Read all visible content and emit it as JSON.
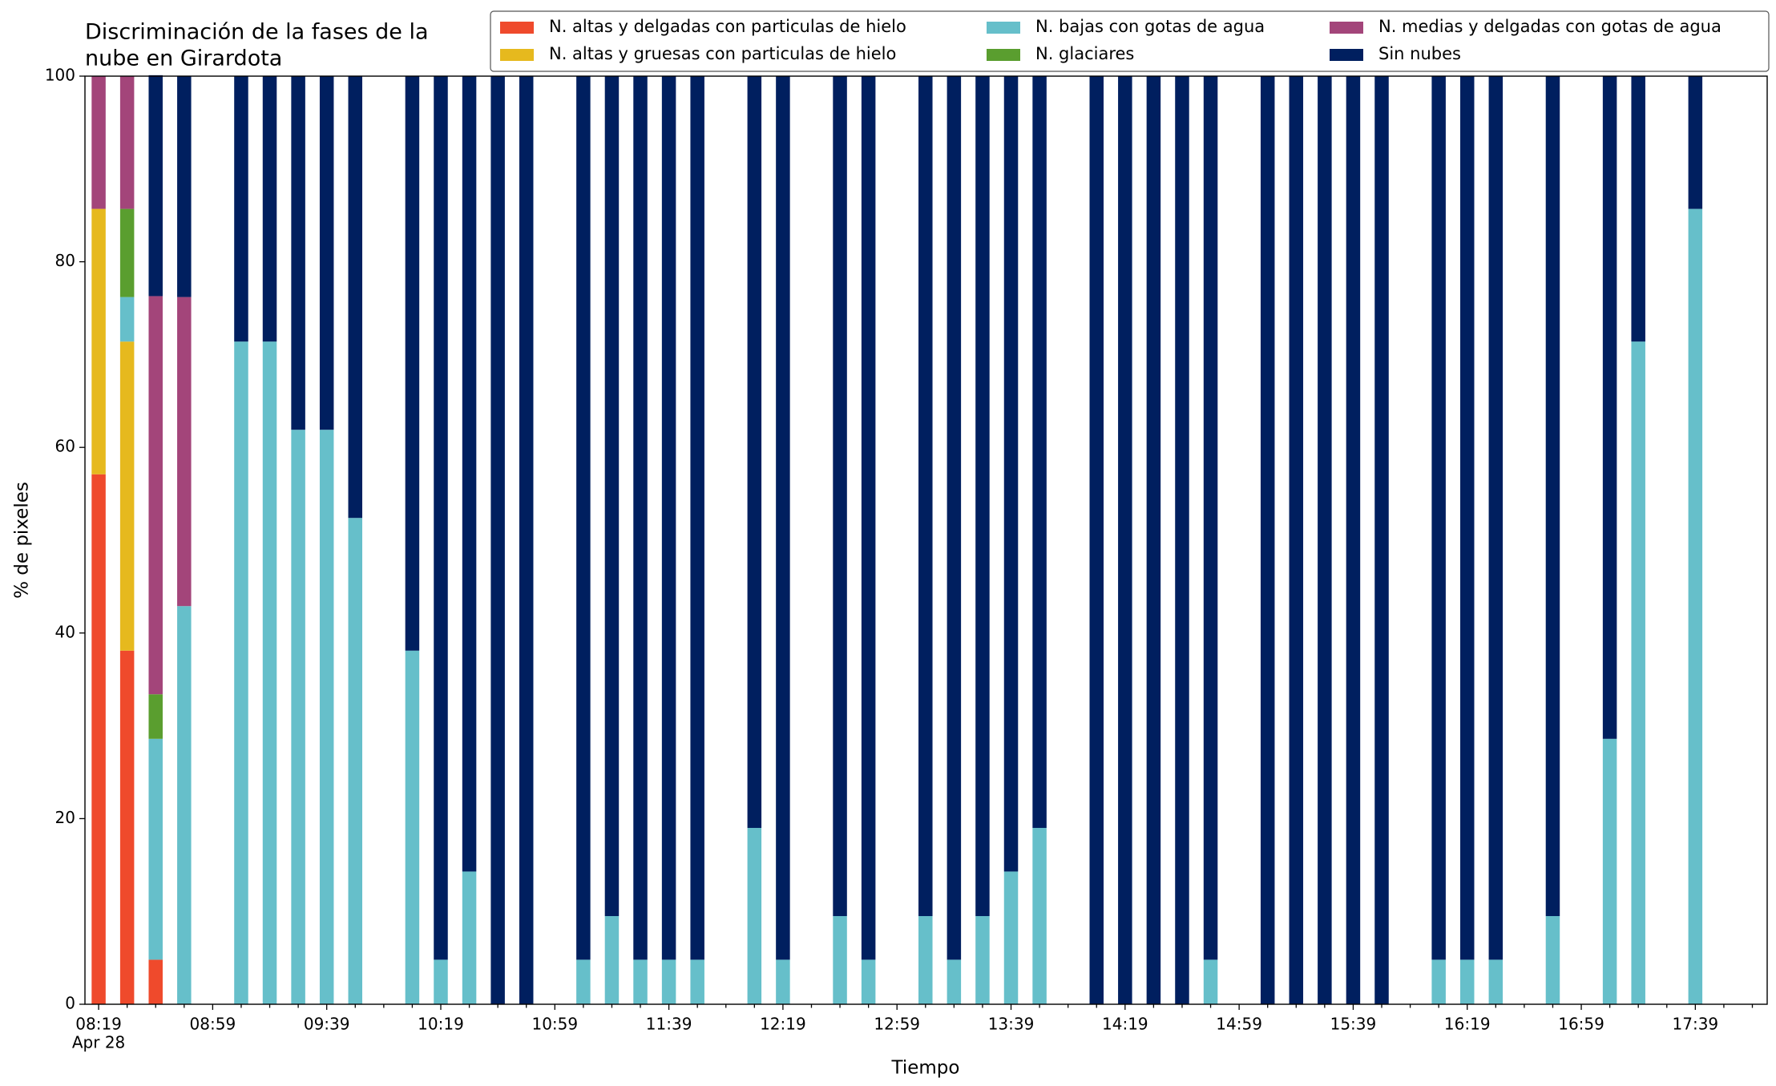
{
  "chart_data": {
    "type": "bar",
    "stacked": true,
    "title": [
      "Discriminación de la fases de la",
      "nube en Girardota"
    ],
    "xlabel": "Tiempo",
    "ylabel": "% de pixeles",
    "x_sublabel": "Apr 28",
    "categories": [
      "08:19",
      null,
      null,
      null,
      "08:59",
      null,
      null,
      null,
      "09:39",
      null,
      null,
      null,
      "10:19",
      null,
      null,
      null,
      "10:59",
      null,
      null,
      null,
      "11:39",
      null,
      null,
      null,
      "12:19",
      null,
      null,
      null,
      "12:59",
      null,
      null,
      null,
      "13:39",
      null,
      null,
      null,
      "14:19",
      null,
      null,
      null,
      "14:59",
      null,
      null,
      null,
      "15:39",
      null,
      null,
      null,
      "16:19",
      null,
      null,
      null,
      "16:59",
      null,
      null,
      null,
      "17:39",
      null,
      null,
      null
    ],
    "ylim": [
      0,
      100
    ],
    "yticks": [
      0,
      20,
      40,
      60,
      80,
      100
    ],
    "legend": "top right",
    "series": [
      {
        "name": "N. altas y delgadas con particulas de hielo",
        "color": "#ef4a2c",
        "values": [
          57.1,
          38.1,
          4.8,
          0,
          null,
          0,
          0,
          0,
          0,
          0,
          null,
          0,
          0,
          0,
          0,
          0,
          null,
          0,
          0,
          0,
          0,
          0,
          null,
          0,
          0,
          null,
          0,
          0,
          null,
          0,
          0,
          0,
          0,
          0,
          null,
          0,
          0,
          0,
          0,
          0,
          null,
          0,
          0,
          0,
          0,
          0,
          null,
          0,
          0,
          0,
          null,
          0,
          null,
          0,
          0,
          null,
          0,
          null,
          null,
          null
        ]
      },
      {
        "name": "N. altas y gruesas con particulas de hielo",
        "color": "#e6b91e",
        "values": [
          28.6,
          33.3,
          0,
          0,
          null,
          0,
          0,
          0,
          0,
          0,
          null,
          0,
          0,
          0,
          0,
          0,
          null,
          0,
          0,
          0,
          0,
          0,
          null,
          0,
          0,
          null,
          0,
          0,
          null,
          0,
          0,
          0,
          0,
          0,
          null,
          0,
          0,
          0,
          0,
          0,
          null,
          0,
          0,
          0,
          0,
          0,
          null,
          0,
          0,
          0,
          null,
          0,
          null,
          0,
          0,
          null,
          0,
          null,
          null,
          null
        ]
      },
      {
        "name": "N. bajas con gotas de agua",
        "color": "#66bfca",
        "values": [
          0,
          4.8,
          23.8,
          42.9,
          null,
          71.4,
          71.4,
          61.9,
          61.9,
          52.4,
          null,
          38.1,
          4.8,
          14.3,
          0,
          0,
          null,
          4.8,
          9.5,
          4.8,
          4.8,
          4.8,
          null,
          19.0,
          4.8,
          null,
          9.5,
          4.8,
          null,
          9.5,
          4.8,
          9.5,
          14.3,
          19.0,
          null,
          0,
          0,
          0,
          0,
          4.8,
          null,
          0,
          0,
          0,
          0,
          0,
          null,
          4.8,
          4.8,
          4.8,
          null,
          9.5,
          null,
          28.6,
          71.4,
          null,
          85.7,
          null,
          null,
          null
        ]
      },
      {
        "name": "N. glaciares",
        "color": "#5a9e2f",
        "values": [
          0,
          9.5,
          4.8,
          0,
          null,
          0,
          0,
          0,
          0,
          0,
          null,
          0,
          0,
          0,
          0,
          0,
          null,
          0,
          0,
          0,
          0,
          0,
          null,
          0,
          0,
          null,
          0,
          0,
          null,
          0,
          0,
          0,
          0,
          0,
          null,
          0,
          0,
          0,
          0,
          0,
          null,
          0,
          0,
          0,
          0,
          0,
          null,
          0,
          0,
          0,
          null,
          0,
          null,
          0,
          0,
          null,
          0,
          null,
          null,
          null
        ]
      },
      {
        "name": "N. medias y delgadas con gotas de agua",
        "color": "#a3457a",
        "values": [
          14.3,
          14.3,
          42.9,
          33.3,
          null,
          0,
          0,
          0,
          0,
          0,
          null,
          0,
          0,
          0,
          0,
          0,
          null,
          0,
          0,
          0,
          0,
          0,
          null,
          0,
          0,
          null,
          0,
          0,
          null,
          0,
          0,
          0,
          0,
          0,
          null,
          0,
          0,
          0,
          0,
          0,
          null,
          0,
          0,
          0,
          0,
          0,
          null,
          0,
          0,
          0,
          null,
          0,
          null,
          0,
          0,
          null,
          0,
          null,
          null,
          null
        ]
      },
      {
        "name": "Sin nubes",
        "color": "#001f5f",
        "values": [
          0,
          0,
          23.8,
          23.8,
          null,
          28.6,
          28.6,
          38.1,
          38.1,
          47.6,
          null,
          61.9,
          95.2,
          85.7,
          100,
          100,
          null,
          95.2,
          90.5,
          95.2,
          95.2,
          95.2,
          null,
          81.0,
          95.2,
          null,
          90.5,
          95.2,
          null,
          90.5,
          95.2,
          90.5,
          85.7,
          81.0,
          null,
          100,
          100,
          100,
          100,
          95.2,
          null,
          100,
          100,
          100,
          100,
          100,
          null,
          95.2,
          95.2,
          95.2,
          null,
          90.5,
          null,
          71.4,
          28.6,
          null,
          14.3,
          null,
          null,
          null
        ]
      }
    ]
  }
}
